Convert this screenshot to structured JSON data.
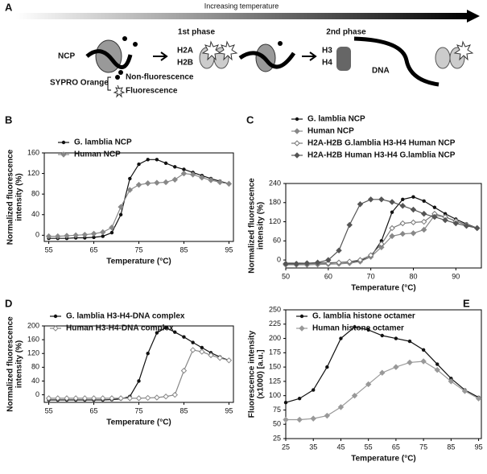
{
  "panel_a": {
    "label": "A",
    "arrow": "Increasing temperature",
    "phase1": "1st phase",
    "phase2": "2nd phase",
    "ncp": "NCP",
    "h2a": "H2A",
    "h2b": "H2B",
    "h3": "H3",
    "h4": "H4",
    "dna": "DNA",
    "dye": "SYPRO Orange",
    "non_fluorescence": "Non-fluorescence",
    "fluorescence": "Fluorescence"
  },
  "chart_data": [
    {
      "type": "line",
      "panel": "B",
      "xlabel": "Temperature (°C)",
      "ylabel": [
        "Normalized fluorescence",
        "intensity (%)"
      ],
      "xlim": [
        54,
        96
      ],
      "xticks": [
        55,
        65,
        75,
        85,
        95
      ],
      "ylim": [
        -12,
        160
      ],
      "yticks": [
        0,
        40,
        80,
        120,
        160
      ],
      "x": [
        55,
        57,
        59,
        61,
        63,
        65,
        67,
        69,
        71,
        73,
        75,
        77,
        79,
        81,
        83,
        85,
        87,
        89,
        91,
        93,
        95
      ],
      "series": [
        {
          "name": "G. lamblia NCP",
          "color": "#111111",
          "marker": "circle",
          "values": [
            -6,
            -6,
            -6,
            -5,
            -5,
            -4,
            -2,
            5,
            40,
            110,
            138,
            147,
            147,
            140,
            133,
            128,
            122,
            116,
            110,
            105,
            100
          ]
        },
        {
          "name": "Human NCP",
          "color": "#888888",
          "marker": "diamond",
          "values": [
            -2,
            -2,
            -1,
            0,
            1,
            3,
            6,
            15,
            55,
            88,
            98,
            101,
            102,
            103,
            108,
            120,
            118,
            112,
            107,
            103,
            100
          ]
        }
      ]
    },
    {
      "type": "line",
      "panel": "C",
      "xlabel": "Temperature (°C)",
      "ylabel": [
        "Normalized fluorescence",
        "intensity (%)"
      ],
      "xlim": [
        50,
        96
      ],
      "xticks": [
        50,
        60,
        70,
        80,
        90
      ],
      "ylim": [
        -25,
        240
      ],
      "yticks": [
        0,
        60,
        120,
        180,
        240
      ],
      "x": [
        50,
        52.5,
        55,
        57.5,
        60,
        62.5,
        65,
        67.5,
        70,
        72.5,
        75,
        77.5,
        80,
        82.5,
        85,
        87.5,
        90,
        92.5,
        95
      ],
      "series": [
        {
          "name": "G. lamblia NCP",
          "color": "#111111",
          "marker": "circle",
          "values": [
            -10,
            -10,
            -10,
            -10,
            -9,
            -8,
            -6,
            -2,
            10,
            60,
            150,
            190,
            198,
            185,
            165,
            145,
            128,
            113,
            100
          ]
        },
        {
          "name": "Human NCP",
          "color": "#888888",
          "marker": "diamond",
          "values": [
            -15,
            -15,
            -15,
            -14,
            -13,
            -12,
            -10,
            -5,
            10,
            40,
            75,
            82,
            84,
            95,
            140,
            135,
            122,
            110,
            100
          ]
        },
        {
          "name": "H2A-H2B G.lamblia H3-H4 Human NCP",
          "color": "#777777",
          "marker": "open-diamond",
          "values": [
            -12,
            -12,
            -12,
            -11,
            -10,
            -8,
            -5,
            0,
            15,
            50,
            100,
            115,
            118,
            120,
            145,
            135,
            122,
            110,
            100
          ]
        },
        {
          "name": "H2A-H2B Human H3-H4 G.lamblia NCP",
          "color": "#555555",
          "marker": "diamond",
          "values": [
            -12,
            -12,
            -10,
            -8,
            0,
            30,
            110,
            175,
            190,
            190,
            182,
            170,
            158,
            145,
            135,
            125,
            115,
            107,
            100
          ]
        }
      ]
    },
    {
      "type": "line",
      "panel": "D",
      "xlabel": "Temperature (°C)",
      "ylabel": [
        "Normalized fluorescence",
        "intensity (%)"
      ],
      "xlim": [
        54,
        96
      ],
      "xticks": [
        55,
        65,
        75,
        85,
        95
      ],
      "ylim": [
        -22,
        200
      ],
      "yticks": [
        0,
        40,
        80,
        120,
        160,
        200
      ],
      "x": [
        55,
        57,
        59,
        61,
        63,
        65,
        67,
        69,
        71,
        73,
        75,
        77,
        79,
        81,
        83,
        85,
        87,
        89,
        91,
        93,
        95
      ],
      "series": [
        {
          "name": "G. lamblia H3-H4-DNA complex",
          "color": "#111111",
          "marker": "circle",
          "values": [
            -15,
            -15,
            -15,
            -15,
            -15,
            -15,
            -15,
            -14,
            -12,
            -5,
            40,
            120,
            180,
            195,
            182,
            168,
            152,
            137,
            122,
            110,
            100
          ]
        },
        {
          "name": "Human H3-H4-DNA complex",
          "color": "#888888",
          "marker": "open-diamond",
          "values": [
            -10,
            -10,
            -10,
            -10,
            -10,
            -10,
            -10,
            -10,
            -10,
            -10,
            -10,
            -9,
            -8,
            -5,
            0,
            70,
            130,
            125,
            115,
            107,
            100
          ]
        }
      ]
    },
    {
      "type": "line",
      "panel": "E",
      "xlabel": "Temperature (°C)",
      "ylabel": [
        "Fluorescence intensity",
        "(x1000) [a.u.]"
      ],
      "xlim": [
        25,
        96
      ],
      "xticks": [
        25,
        35,
        45,
        55,
        65,
        75,
        85,
        95
      ],
      "ylim": [
        25,
        250
      ],
      "yticks": [
        25,
        50,
        75,
        100,
        125,
        150,
        175,
        200,
        225,
        250
      ],
      "x": [
        25,
        30,
        35,
        40,
        45,
        50,
        55,
        60,
        65,
        70,
        75,
        80,
        85,
        90,
        95
      ],
      "series": [
        {
          "name": "G. lamblia histone octamer",
          "color": "#111111",
          "marker": "circle",
          "values": [
            88,
            95,
            110,
            150,
            200,
            220,
            215,
            205,
            200,
            195,
            180,
            155,
            130,
            110,
            97
          ]
        },
        {
          "name": "Human histone octamer",
          "color": "#999999",
          "marker": "diamond",
          "values": [
            58,
            58,
            60,
            65,
            80,
            100,
            120,
            140,
            150,
            158,
            160,
            145,
            125,
            108,
            95
          ]
        }
      ]
    }
  ]
}
